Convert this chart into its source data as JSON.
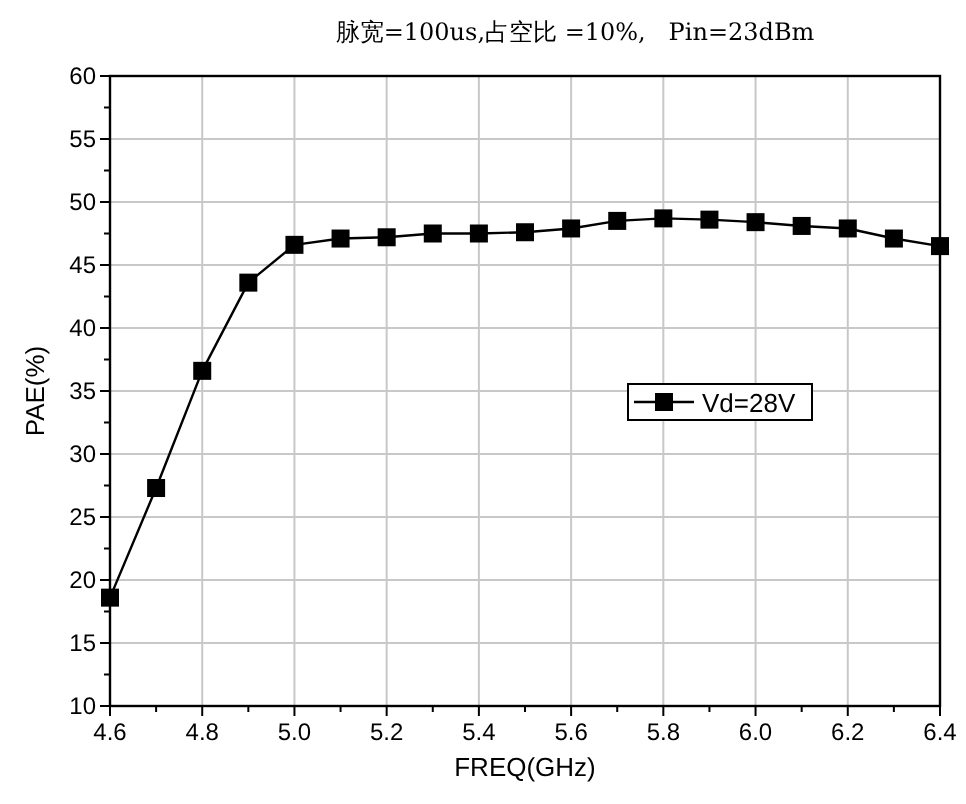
{
  "chart_data": {
    "type": "line",
    "title": "脉宽=100us,占空比 =10%,   Pin=23dBm",
    "xlabel": "FREQ(GHz)",
    "ylabel": "PAE(%)",
    "x": [
      4.6,
      4.7,
      4.8,
      4.9,
      5.0,
      5.1,
      5.2,
      5.3,
      5.4,
      5.5,
      5.6,
      5.7,
      5.8,
      5.9,
      6.0,
      6.1,
      6.2,
      6.3,
      6.4
    ],
    "series": [
      {
        "name": "Vd=28V",
        "color": "#000000",
        "values": [
          18.6,
          27.3,
          36.6,
          43.6,
          46.6,
          47.1,
          47.2,
          47.5,
          47.5,
          47.6,
          47.9,
          48.5,
          48.7,
          48.6,
          48.4,
          48.1,
          47.9,
          47.1,
          46.5
        ]
      }
    ],
    "xlim": [
      4.6,
      6.4
    ],
    "xticks": [
      {
        "value": 4.6,
        "label": "4.6"
      },
      {
        "value": 4.8,
        "label": "4.8"
      },
      {
        "value": 5.0,
        "label": "5.0"
      },
      {
        "value": 5.2,
        "label": "5.2"
      },
      {
        "value": 5.4,
        "label": "5.4"
      },
      {
        "value": 5.6,
        "label": "5.6"
      },
      {
        "value": 5.8,
        "label": "5.8"
      },
      {
        "value": 6.0,
        "label": "6.0"
      },
      {
        "value": 6.2,
        "label": "6.2"
      },
      {
        "value": 6.4,
        "label": "6.4"
      }
    ],
    "ylim": [
      10,
      60
    ],
    "yticks": [
      10,
      15,
      20,
      25,
      30,
      35,
      40,
      45,
      50,
      55,
      60
    ],
    "grid": true,
    "legend": "right",
    "marker": "square",
    "line_style": "solid"
  }
}
